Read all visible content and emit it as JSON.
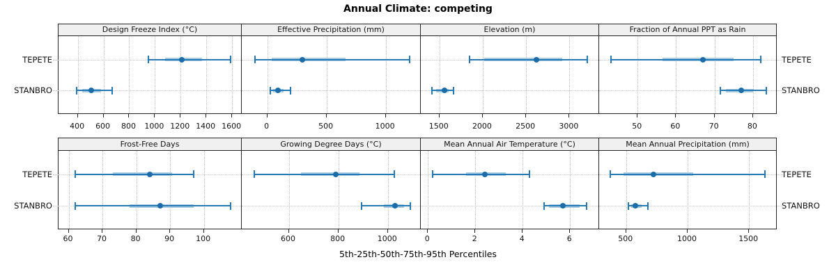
{
  "title": "Annual Climate: competing",
  "x_axis_title": "5th-25th-50th-75th-95th Percentiles",
  "row_labels": [
    "TEPETE",
    "STANBRO"
  ],
  "colors": {
    "line": "#2478b4",
    "band": "#a8cde3",
    "dot": "#1b6ca8",
    "grid": "#c4c4c4",
    "strip_bg": "#f0f0f0",
    "border": "#222222"
  },
  "chart_data": {
    "type": "scatter",
    "subtype": "percentile-dotplot-with-intervals",
    "percentiles_shown": [
      "5th",
      "25th",
      "50th",
      "75th",
      "95th"
    ],
    "categories": [
      "TEPETE",
      "STANBRO"
    ],
    "grid": "dotted",
    "legend_position": "none",
    "layout": "2 rows x 4 columns",
    "panels": [
      {
        "title": "Design Freeze Index (°C)",
        "row": 0,
        "col": 0,
        "xlim": [
          250,
          1670
        ],
        "xticks": [
          400,
          600,
          800,
          1000,
          1200,
          1400,
          1600
        ],
        "groups": [
          {
            "label": "TEPETE",
            "p5": 950,
            "p25": 1080,
            "p50": 1210,
            "p75": 1365,
            "p95": 1590
          },
          {
            "label": "STANBRO",
            "p5": 390,
            "p25": 435,
            "p50": 505,
            "p75": 580,
            "p95": 670
          }
        ]
      },
      {
        "title": "Effective Precipitation (mm)",
        "row": 0,
        "col": 1,
        "xlim": [
          -215,
          1290
        ],
        "xticks": [
          0,
          500,
          1000
        ],
        "groups": [
          {
            "label": "TEPETE",
            "p5": -105,
            "p25": 35,
            "p50": 295,
            "p75": 660,
            "p95": 1200
          },
          {
            "label": "STANBRO",
            "p5": 25,
            "p25": 50,
            "p50": 90,
            "p75": 140,
            "p95": 195
          }
        ]
      },
      {
        "title": "Elevation (m)",
        "row": 0,
        "col": 2,
        "xlim": [
          1285,
          3335
        ],
        "xticks": [
          1500,
          2000,
          2500,
          3000
        ],
        "groups": [
          {
            "label": "TEPETE",
            "p5": 1850,
            "p25": 2020,
            "p50": 2620,
            "p75": 2915,
            "p95": 3205
          },
          {
            "label": "STANBRO",
            "p5": 1410,
            "p25": 1460,
            "p50": 1560,
            "p75": 1610,
            "p95": 1660
          }
        ]
      },
      {
        "title": "Fraction of Annual PPT as Rain",
        "row": 0,
        "col": 3,
        "xlim": [
          40,
          86
        ],
        "xticks": [
          50,
          60,
          70,
          80
        ],
        "groups": [
          {
            "label": "TEPETE",
            "p5": 43,
            "p25": 56.5,
            "p50": 67,
            "p75": 75,
            "p95": 82
          },
          {
            "label": "STANBRO",
            "p5": 71.5,
            "p25": 73,
            "p50": 77,
            "p75": 80,
            "p95": 83.5
          }
        ]
      },
      {
        "title": "Frost-Free Days",
        "row": 1,
        "col": 0,
        "xlim": [
          57,
          111
        ],
        "xticks": [
          60,
          70,
          80,
          90,
          100
        ],
        "groups": [
          {
            "label": "TEPETE",
            "p5": 62,
            "p25": 73,
            "p50": 84,
            "p75": 90.5,
            "p95": 97
          },
          {
            "label": "STANBRO",
            "p5": 62,
            "p25": 78,
            "p50": 87,
            "p75": 97,
            "p95": 108
          }
        ]
      },
      {
        "title": "Growing Degree Days (°C)",
        "row": 1,
        "col": 1,
        "xlim": [
          410,
          1130
        ],
        "xticks": [
          600,
          800,
          1000
        ],
        "groups": [
          {
            "label": "TEPETE",
            "p5": 460,
            "p25": 650,
            "p50": 790,
            "p75": 885,
            "p95": 1025
          },
          {
            "label": "STANBRO",
            "p5": 895,
            "p25": 985,
            "p50": 1030,
            "p75": 1065,
            "p95": 1090
          }
        ]
      },
      {
        "title": "Mean Annual Air Temperature (°C)",
        "row": 1,
        "col": 2,
        "xlim": [
          -0.3,
          7.2
        ],
        "xticks": [
          0,
          2,
          4,
          6
        ],
        "groups": [
          {
            "label": "TEPETE",
            "p5": 0.2,
            "p25": 1.6,
            "p50": 2.4,
            "p75": 3.3,
            "p95": 4.3
          },
          {
            "label": "STANBRO",
            "p5": 4.9,
            "p25": 5.1,
            "p50": 5.7,
            "p75": 6.4,
            "p95": 6.7
          }
        ]
      },
      {
        "title": "Mean Annual Precipitation (mm)",
        "row": 1,
        "col": 3,
        "xlim": [
          280,
          1720
        ],
        "xticks": [
          500,
          1000,
          1500
        ],
        "groups": [
          {
            "label": "TEPETE",
            "p5": 370,
            "p25": 480,
            "p50": 725,
            "p75": 1045,
            "p95": 1630
          },
          {
            "label": "STANBRO",
            "p5": 520,
            "p25": 540,
            "p50": 575,
            "p75": 625,
            "p95": 675
          }
        ]
      }
    ]
  }
}
